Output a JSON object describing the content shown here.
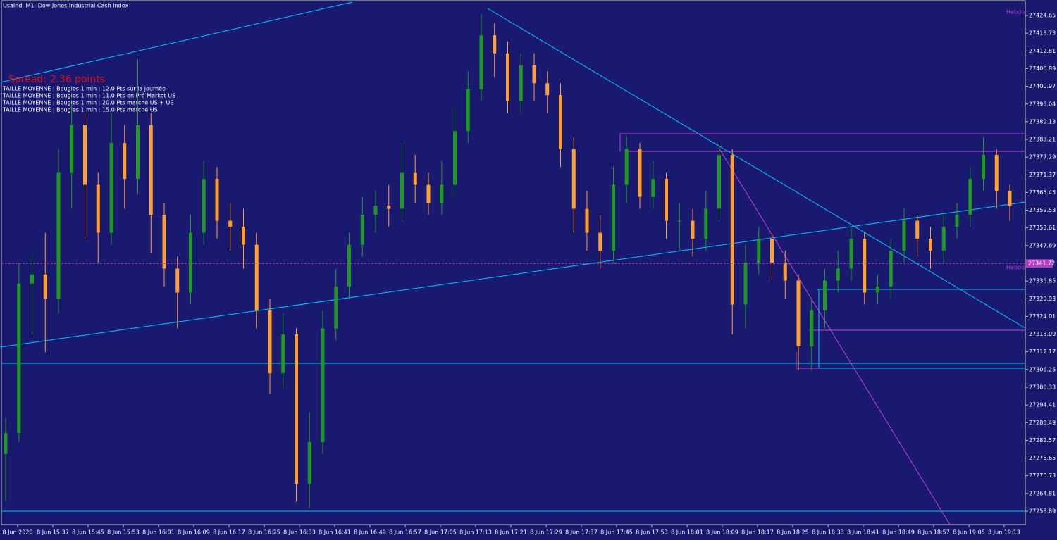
{
  "chart_data": {
    "type": "candlestick",
    "title": "UsaInd, M1:  Dow Jones Industrial Cash Index",
    "annotations": [
      "Spread: 2.36 points",
      "TAILLE MOYENNE | Bougies 1 min : 12.0 Pts sur la journée",
      "TAILLE MOYENNE | Bougies 1 min : 11.0 Pts en Pré-Market US",
      "TAILLE MOYENNE | Bougies 1 min : 20.0 Pts marché US + UE",
      "TAILLE MOYENNE | Bougies 1 min : 15.0 Pts marché US"
    ],
    "level_labels": [
      "Hebdo",
      "Hebdo"
    ],
    "bull_color": "#1f9a1f",
    "bear_color": "#ffa030",
    "last_price_color": "#b040c0",
    "categories": [
      "8 Jun 2020",
      "8 Jun 15:37",
      "8 Jun 15:45",
      "8 Jun 15:53",
      "8 Jun 16:01",
      "8 Jun 16:09",
      "8 Jun 16:17",
      "8 Jun 16:25",
      "8 Jun 16:33",
      "8 Jun 16:41",
      "8 Jun 16:49",
      "8 Jun 16:57",
      "8 Jun 17:05",
      "8 Jun 17:13",
      "8 Jun 17:21",
      "8 Jun 17:29",
      "8 Jun 17:37",
      "8 Jun 17:45",
      "8 Jun 17:53",
      "8 Jun 18:01",
      "8 Jun 18:09",
      "8 Jun 18:17",
      "8 Jun 18:25",
      "8 Jun 18:33",
      "8 Jun 18:41",
      "8 Jun 18:49",
      "8 Jun 18:57",
      "8 Jun 19:05",
      "8 Jun 19:13"
    ],
    "candles": [
      [
        27278,
        27290,
        27262,
        27285
      ],
      [
        27285,
        27342,
        27282,
        27335
      ],
      [
        27335,
        27345,
        27318,
        27338
      ],
      [
        27338,
        27352,
        27312,
        27330
      ],
      [
        27330,
        27380,
        27325,
        27372
      ],
      [
        27372,
        27395,
        27360,
        27388
      ],
      [
        27388,
        27392,
        27350,
        27368
      ],
      [
        27368,
        27372,
        27342,
        27352
      ],
      [
        27352,
        27392,
        27348,
        27382
      ],
      [
        27382,
        27388,
        27360,
        27370
      ],
      [
        27370,
        27410,
        27365,
        27388
      ],
      [
        27388,
        27392,
        27345,
        27358
      ],
      [
        27358,
        27362,
        27334,
        27340
      ],
      [
        27340,
        27344,
        27320,
        27332
      ],
      [
        27332,
        27358,
        27328,
        27352
      ],
      [
        27352,
        27376,
        27348,
        27370
      ],
      [
        27370,
        27374,
        27350,
        27356
      ],
      [
        27356,
        27362,
        27346,
        27354
      ],
      [
        27354,
        27360,
        27340,
        27348
      ],
      [
        27348,
        27352,
        27320,
        27326
      ],
      [
        27326,
        27330,
        27298,
        27305
      ],
      [
        27305,
        27325,
        27300,
        27318
      ],
      [
        27318,
        27320,
        27262,
        27268
      ],
      [
        27268,
        27292,
        27260,
        27282
      ],
      [
        27282,
        27326,
        27278,
        27320
      ],
      [
        27320,
        27340,
        27316,
        27334
      ],
      [
        27334,
        27352,
        27330,
        27348
      ],
      [
        27348,
        27364,
        27344,
        27358
      ],
      [
        27358,
        27366,
        27352,
        27361
      ],
      [
        27361,
        27368,
        27354,
        27360
      ],
      [
        27360,
        27382,
        27356,
        27372
      ],
      [
        27372,
        27378,
        27362,
        27368
      ],
      [
        27368,
        27372,
        27358,
        27362
      ],
      [
        27362,
        27376,
        27358,
        27368
      ],
      [
        27368,
        27394,
        27364,
        27386
      ],
      [
        27386,
        27406,
        27382,
        27400
      ],
      [
        27400,
        27425,
        27396,
        27418
      ],
      [
        27418,
        27422,
        27404,
        27412
      ],
      [
        27412,
        27416,
        27392,
        27396
      ],
      [
        27396,
        27412,
        27392,
        27408
      ],
      [
        27408,
        27412,
        27396,
        27402
      ],
      [
        27402,
        27406,
        27392,
        27398
      ],
      [
        27398,
        27402,
        27374,
        27380
      ],
      [
        27380,
        27384,
        27352,
        27360
      ],
      [
        27360,
        27366,
        27346,
        27352
      ],
      [
        27352,
        27358,
        27340,
        27346
      ],
      [
        27346,
        27374,
        27342,
        27368
      ],
      [
        27368,
        27384,
        27362,
        27380
      ],
      [
        27380,
        27382,
        27360,
        27364
      ],
      [
        27364,
        27376,
        27360,
        27370
      ],
      [
        27370,
        27372,
        27350,
        27356
      ],
      [
        27356,
        27362,
        27346,
        27356
      ],
      [
        27356,
        27360,
        27344,
        27350
      ],
      [
        27350,
        27366,
        27346,
        27360
      ],
      [
        27360,
        27382,
        27356,
        27378
      ],
      [
        27378,
        27380,
        27318,
        27328
      ],
      [
        27328,
        27348,
        27320,
        27342
      ],
      [
        27342,
        27354,
        27338,
        27350
      ],
      [
        27350,
        27352,
        27336,
        27342
      ],
      [
        27342,
        27346,
        27330,
        27336
      ],
      [
        27336,
        27338,
        27306,
        27314
      ],
      [
        27314,
        27330,
        27306,
        27326
      ],
      [
        27326,
        27340,
        27320,
        27336
      ],
      [
        27336,
        27346,
        27332,
        27340
      ],
      [
        27340,
        27354,
        27336,
        27350
      ],
      [
        27350,
        27352,
        27328,
        27332
      ],
      [
        27332,
        27338,
        27328,
        27334
      ],
      [
        27334,
        27350,
        27330,
        27346
      ],
      [
        27346,
        27360,
        27342,
        27356
      ],
      [
        27356,
        27358,
        27344,
        27350
      ],
      [
        27350,
        27354,
        27340,
        27346
      ],
      [
        27346,
        27358,
        27342,
        27354
      ],
      [
        27354,
        27362,
        27350,
        27358
      ],
      [
        27358,
        27374,
        27354,
        27370
      ],
      [
        27370,
        27384,
        27366,
        27378
      ],
      [
        27378,
        27380,
        27360,
        27366
      ],
      [
        27366,
        27368,
        27356,
        27361
      ]
    ],
    "last_price": 27341.72,
    "ylim": [
      27254.42,
      27429.83
    ],
    "yticks": [
      27424.65,
      27418.73,
      27412.81,
      27406.89,
      27400.97,
      27395.04,
      27389.13,
      27383.21,
      27377.29,
      27371.37,
      27365.45,
      27359.53,
      27353.61,
      27347.69,
      27335.85,
      27329.93,
      27324.01,
      27318.09,
      27312.17,
      27306.25,
      27300.33,
      27294.41,
      27288.49,
      27282.57,
      27276.65,
      27270.73,
      27264.81,
      27258.89
    ]
  }
}
